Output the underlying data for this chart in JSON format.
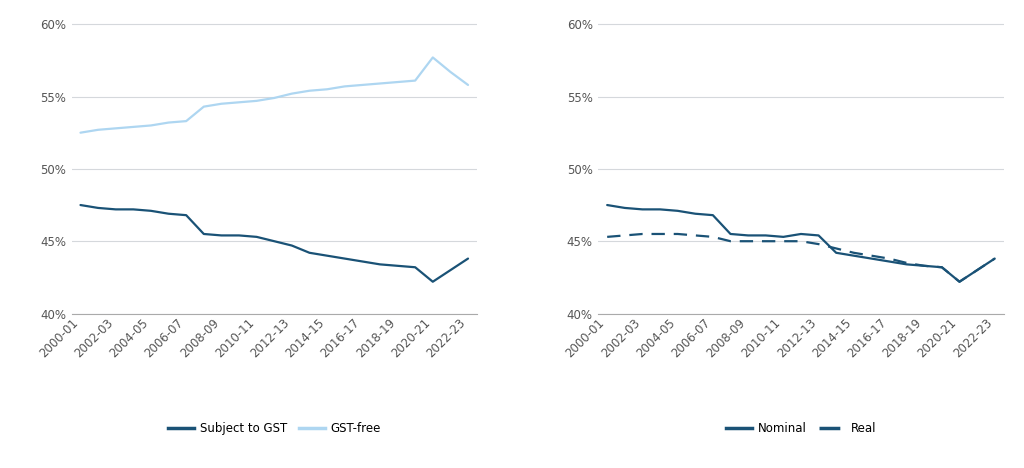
{
  "x_tick_labels": [
    "2000-01",
    "2002-03",
    "2004-05",
    "2006-07",
    "2008-09",
    "2010-11",
    "2012-13",
    "2014-15",
    "2016-17",
    "2018-19",
    "2020-21",
    "2022-23"
  ],
  "x_tick_pos": [
    0,
    2,
    4,
    6,
    8,
    10,
    12,
    14,
    16,
    18,
    20,
    22
  ],
  "subject_y": [
    47.5,
    47.3,
    47.2,
    47.2,
    47.1,
    46.9,
    46.8,
    45.5,
    45.4,
    45.4,
    45.3,
    45.0,
    44.7,
    44.2,
    44.0,
    43.8,
    43.6,
    43.4,
    43.3,
    43.2,
    42.2,
    43.0,
    43.8
  ],
  "free_y": [
    52.5,
    52.7,
    52.8,
    52.9,
    53.0,
    53.2,
    53.3,
    54.3,
    54.5,
    54.6,
    54.7,
    54.9,
    55.2,
    55.4,
    55.5,
    55.7,
    55.8,
    55.9,
    56.0,
    56.1,
    57.7,
    56.7,
    55.8
  ],
  "nominal_y": [
    47.5,
    47.3,
    47.2,
    47.2,
    47.1,
    46.9,
    46.8,
    45.5,
    45.4,
    45.4,
    45.3,
    45.5,
    45.4,
    44.2,
    44.0,
    43.8,
    43.6,
    43.4,
    43.3,
    43.2,
    42.2,
    43.0,
    43.8
  ],
  "real_x": [
    0,
    1,
    2,
    3,
    4,
    5,
    6,
    7,
    8,
    9,
    10,
    11,
    12,
    13,
    14,
    15,
    16,
    17,
    18,
    19,
    20,
    21,
    22
  ],
  "real_y": [
    45.3,
    45.4,
    45.5,
    45.5,
    45.5,
    45.4,
    45.3,
    45.0,
    45.0,
    45.0,
    45.0,
    45.0,
    44.8,
    44.5,
    44.2,
    44.0,
    43.8,
    43.5,
    43.3,
    43.2,
    42.2,
    43.0,
    43.8
  ],
  "subject_color": "#1a5276",
  "free_color": "#aed6f1",
  "nominal_color": "#1a5276",
  "real_color": "#1a5276",
  "grid_color": "#d5d8dc",
  "spine_color": "#aaaaaa",
  "ylim_low": 0.4,
  "ylim_high": 0.607,
  "yticks": [
    0.4,
    0.45,
    0.5,
    0.55,
    0.6
  ],
  "legend1": [
    "Subject to GST",
    "GST-free"
  ],
  "legend2": [
    "Nominal",
    "Real"
  ],
  "tick_fontsize": 8.5,
  "linewidth": 1.6
}
